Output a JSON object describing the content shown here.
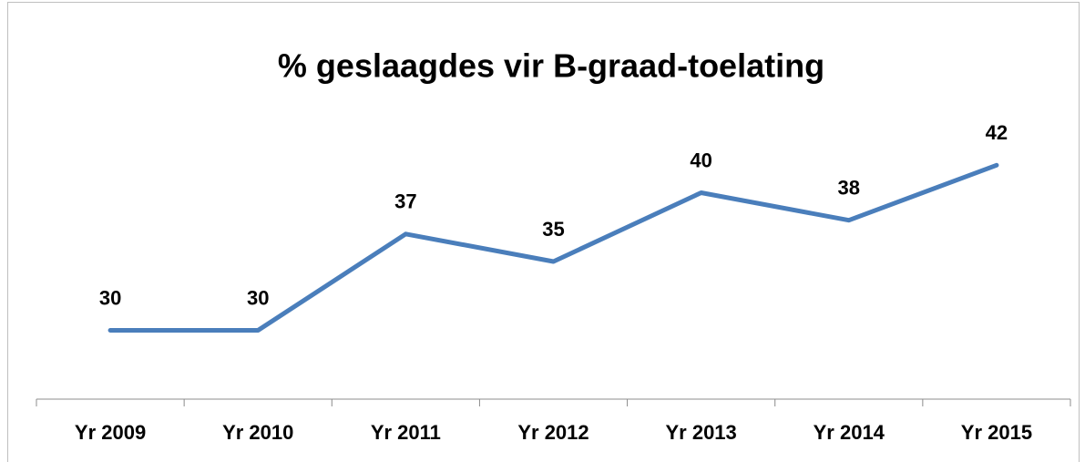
{
  "chart_data": {
    "type": "line",
    "title": "% geslaagdes vir B-graad-toelating",
    "categories": [
      "Yr 2009",
      "Yr 2010",
      "Yr 2011",
      "Yr 2012",
      "Yr 2013",
      "Yr 2014",
      "Yr 2015"
    ],
    "values": [
      30,
      30,
      37,
      35,
      40,
      38,
      42
    ],
    "color": "#4a7ebb",
    "ylim": [
      25,
      45
    ],
    "grid": false
  }
}
